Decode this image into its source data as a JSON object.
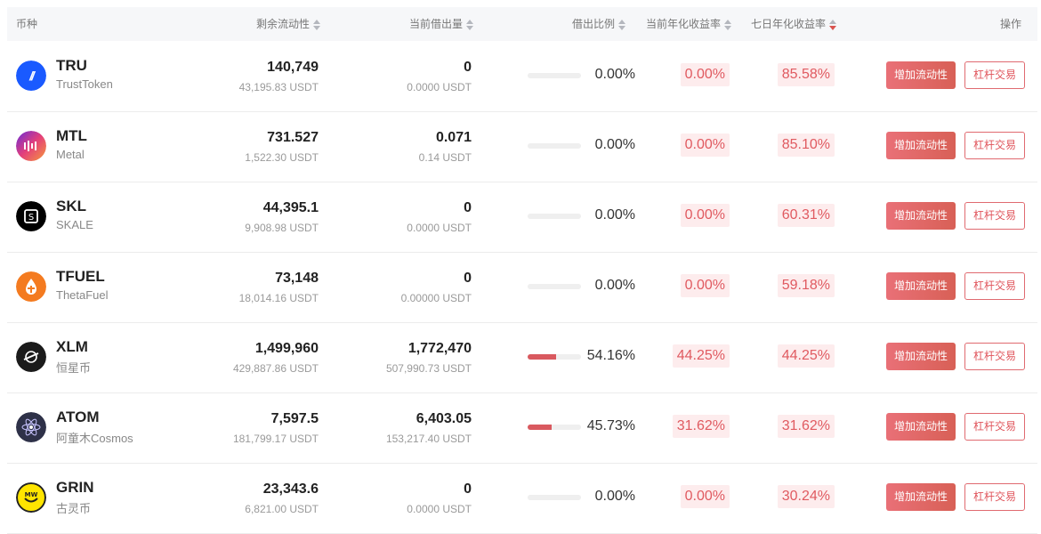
{
  "header": {
    "coin": "币种",
    "remaining_liquidity": "剩余流动性",
    "borrowed": "当前借出量",
    "borrow_ratio": "借出比例",
    "current_apy": "当前年化收益率",
    "seven_day_apy": "七日年化收益率",
    "actions": "操作"
  },
  "colors": {
    "accent": "#e0555c",
    "rate_bg": "#fdeced",
    "bar_fill": "#d9595f"
  },
  "rows": [
    {
      "symbol": "TRU",
      "name": "TrustToken",
      "icon": "trusttoken-icon",
      "liquidity": "140,749",
      "liquidity_usdt": "43,195.83 USDT",
      "borrowed": "0",
      "borrowed_usdt": "0.0000 USDT",
      "ratio": "0.00%",
      "ratio_value": 0,
      "current_apy": "0.00%",
      "seven_day_apy": "85.58%",
      "add_label": "增加流动性",
      "trade_label": "杠杆交易"
    },
    {
      "symbol": "MTL",
      "name": "Metal",
      "icon": "metal-icon",
      "liquidity": "731.527",
      "liquidity_usdt": "1,522.30 USDT",
      "borrowed": "0.071",
      "borrowed_usdt": "0.14 USDT",
      "ratio": "0.00%",
      "ratio_value": 0,
      "current_apy": "0.00%",
      "seven_day_apy": "85.10%",
      "add_label": "增加流动性",
      "trade_label": "杠杆交易"
    },
    {
      "symbol": "SKL",
      "name": "SKALE",
      "icon": "skale-icon",
      "liquidity": "44,395.1",
      "liquidity_usdt": "9,908.98 USDT",
      "borrowed": "0",
      "borrowed_usdt": "0.0000 USDT",
      "ratio": "0.00%",
      "ratio_value": 0,
      "current_apy": "0.00%",
      "seven_day_apy": "60.31%",
      "add_label": "增加流动性",
      "trade_label": "杠杆交易"
    },
    {
      "symbol": "TFUEL",
      "name": "ThetaFuel",
      "icon": "thetafuel-icon",
      "liquidity": "73,148",
      "liquidity_usdt": "18,014.16 USDT",
      "borrowed": "0",
      "borrowed_usdt": "0.00000 USDT",
      "ratio": "0.00%",
      "ratio_value": 0,
      "current_apy": "0.00%",
      "seven_day_apy": "59.18%",
      "add_label": "增加流动性",
      "trade_label": "杠杆交易"
    },
    {
      "symbol": "XLM",
      "name": "恒星币",
      "icon": "stellar-icon",
      "liquidity": "1,499,960",
      "liquidity_usdt": "429,887.86 USDT",
      "borrowed": "1,772,470",
      "borrowed_usdt": "507,990.73 USDT",
      "ratio": "54.16%",
      "ratio_value": 0.5416,
      "current_apy": "44.25%",
      "seven_day_apy": "44.25%",
      "add_label": "增加流动性",
      "trade_label": "杠杆交易"
    },
    {
      "symbol": "ATOM",
      "name": "阿童木Cosmos",
      "icon": "cosmos-icon",
      "liquidity": "7,597.5",
      "liquidity_usdt": "181,799.17 USDT",
      "borrowed": "6,403.05",
      "borrowed_usdt": "153,217.40 USDT",
      "ratio": "45.73%",
      "ratio_value": 0.4573,
      "current_apy": "31.62%",
      "seven_day_apy": "31.62%",
      "add_label": "增加流动性",
      "trade_label": "杠杆交易"
    },
    {
      "symbol": "GRIN",
      "name": "古灵币",
      "icon": "grin-icon",
      "liquidity": "23,343.6",
      "liquidity_usdt": "6,821.00 USDT",
      "borrowed": "0",
      "borrowed_usdt": "0.0000 USDT",
      "ratio": "0.00%",
      "ratio_value": 0,
      "current_apy": "0.00%",
      "seven_day_apy": "30.24%",
      "add_label": "增加流动性",
      "trade_label": "杠杆交易"
    }
  ]
}
